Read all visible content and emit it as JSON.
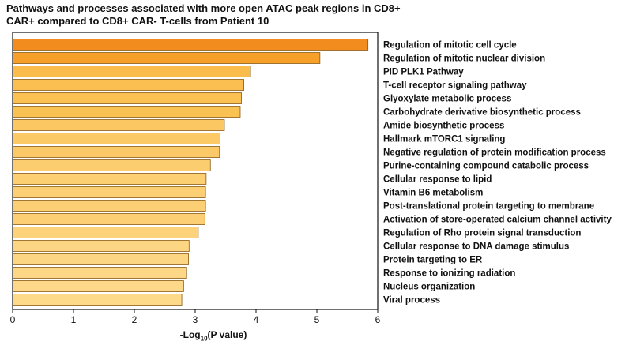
{
  "title": "Pathways and processes associated with more open ATAC peak regions in CD8+ CAR+ compared to CD8+ CAR- T-cells from Patient 10",
  "chart_data": {
    "type": "bar",
    "orientation": "horizontal",
    "title": "Pathways and processes associated with more open ATAC peak regions in CD8+ CAR+ compared to CD8+ CAR- T-cells from Patient 10",
    "xlabel_prefix": "-Log",
    "xlabel_sub": "10",
    "xlabel_suffix": "(P value)",
    "xlim": [
      0,
      6
    ],
    "xticks": [
      "0",
      "1",
      "2",
      "3",
      "4",
      "5",
      "6"
    ],
    "categories": [
      "Regulation of mitotic cell cycle",
      "Regulation of mitotic nuclear division",
      "PID PLK1 Pathway",
      "T-cell receptor signaling pathway",
      "Glyoxylate metabolic process",
      "Carbohydrate derivative biosynthetic process",
      "Amide biosynthetic process",
      "Hallmark mTORC1 signaling",
      "Negative regulation of protein modification process",
      "Purine-containing compound catabolic process",
      "Cellular response to lipid",
      "Vitamin B6 metabolism",
      "Post-translational protein targeting to membrane",
      "Activation of store-operated calcium channel activity",
      "Regulation of Rho protein signal transduction",
      "Cellular response to DNA damage stimulus",
      "Protein targeting to ER",
      "Response to ionizing radiation",
      "Nucleus organization",
      "Viral process"
    ],
    "values": [
      5.84,
      5.05,
      3.91,
      3.8,
      3.76,
      3.74,
      3.48,
      3.41,
      3.4,
      3.25,
      3.18,
      3.17,
      3.17,
      3.16,
      3.05,
      2.9,
      2.89,
      2.86,
      2.81,
      2.78
    ],
    "colors": {
      "high": "#f28c1e",
      "mid": "#f9b233",
      "low": "#fdd98a",
      "outline": "#8a5a10",
      "axis": "#111111"
    }
  }
}
